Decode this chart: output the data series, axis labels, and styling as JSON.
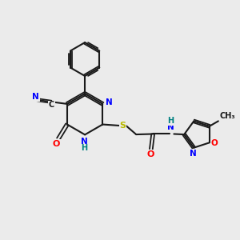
{
  "background_color": "#ebebeb",
  "bond_color": "#1a1a1a",
  "atom_colors": {
    "N": "#0000ff",
    "O": "#ff0000",
    "S": "#b8b800",
    "C": "#1a1a1a",
    "H": "#008080",
    "CN_N": "#0000ff"
  },
  "figsize": [
    3.0,
    3.0
  ],
  "dpi": 100
}
